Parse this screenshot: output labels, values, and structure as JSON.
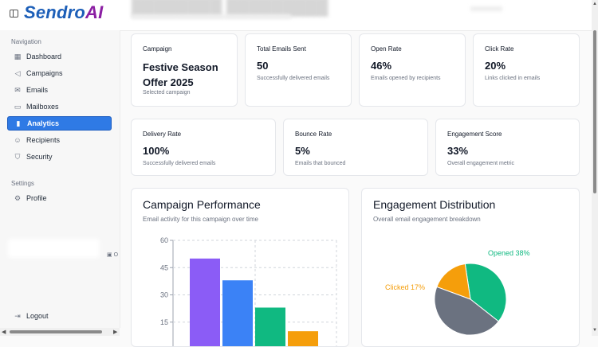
{
  "brand": {
    "part1": "Sendro",
    "part2": "AI"
  },
  "sidebar": {
    "nav_label": "Navigation",
    "items": [
      {
        "label": "Dashboard",
        "icon": "grid-icon",
        "active": false
      },
      {
        "label": "Campaigns",
        "icon": "megaphone-icon",
        "active": false
      },
      {
        "label": "Emails",
        "icon": "mail-icon",
        "active": false
      },
      {
        "label": "Mailboxes",
        "icon": "inbox-icon",
        "active": false
      },
      {
        "label": "Analytics",
        "icon": "bar-chart-icon",
        "active": true
      },
      {
        "label": "Recipients",
        "icon": "users-icon",
        "active": false
      },
      {
        "label": "Security",
        "icon": "shield-icon",
        "active": false
      }
    ],
    "settings_label": "Settings",
    "settings_items": [
      {
        "label": "Profile",
        "icon": "gear-icon"
      }
    ],
    "status_text": "O",
    "logout": "Logout"
  },
  "stats_row1": [
    {
      "label": "Campaign",
      "value": "Festive Season Offer 2025",
      "sub": "Selected campaign"
    },
    {
      "label": "Total Emails Sent",
      "value": "50",
      "sub": "Successfully delivered emails"
    },
    {
      "label": "Open Rate",
      "value": "46%",
      "sub": "Emails opened by recipients"
    },
    {
      "label": "Click Rate",
      "value": "20%",
      "sub": "Links clicked in emails"
    }
  ],
  "stats_row2": [
    {
      "label": "Delivery Rate",
      "value": "100%",
      "sub": "Successfully delivered emails"
    },
    {
      "label": "Bounce Rate",
      "value": "5%",
      "sub": "Emails that bounced"
    },
    {
      "label": "Engagement Score",
      "value": "33%",
      "sub": "Overall engagement metric"
    }
  ],
  "performance": {
    "title": "Campaign Performance",
    "subtitle": "Email activity for this campaign over time"
  },
  "distribution": {
    "title": "Engagement Distribution",
    "subtitle": "Overall email engagement breakdown"
  },
  "colors": {
    "accent": "#2f7ae5",
    "purple": "#8b5cf6",
    "blue": "#3b82f6",
    "green": "#10b981",
    "orange": "#f59e0b",
    "gray": "#6b7280"
  },
  "chart_data": [
    {
      "type": "bar",
      "title": "Campaign Performance",
      "yticks": [
        "15",
        "30",
        "45",
        "60"
      ],
      "ylim": [
        0,
        60
      ],
      "values": [
        50,
        38,
        23,
        10
      ],
      "colors": [
        "#8b5cf6",
        "#3b82f6",
        "#10b981",
        "#f59e0b"
      ],
      "grid": true
    },
    {
      "type": "pie",
      "title": "Engagement Distribution",
      "slices": [
        {
          "label": "Opened 38%",
          "value": 38,
          "color": "#10b981"
        },
        {
          "label": "Clicked 17%",
          "value": 17,
          "color": "#f59e0b"
        },
        {
          "label": "",
          "value": 45,
          "color": "#6b7280"
        }
      ]
    }
  ]
}
